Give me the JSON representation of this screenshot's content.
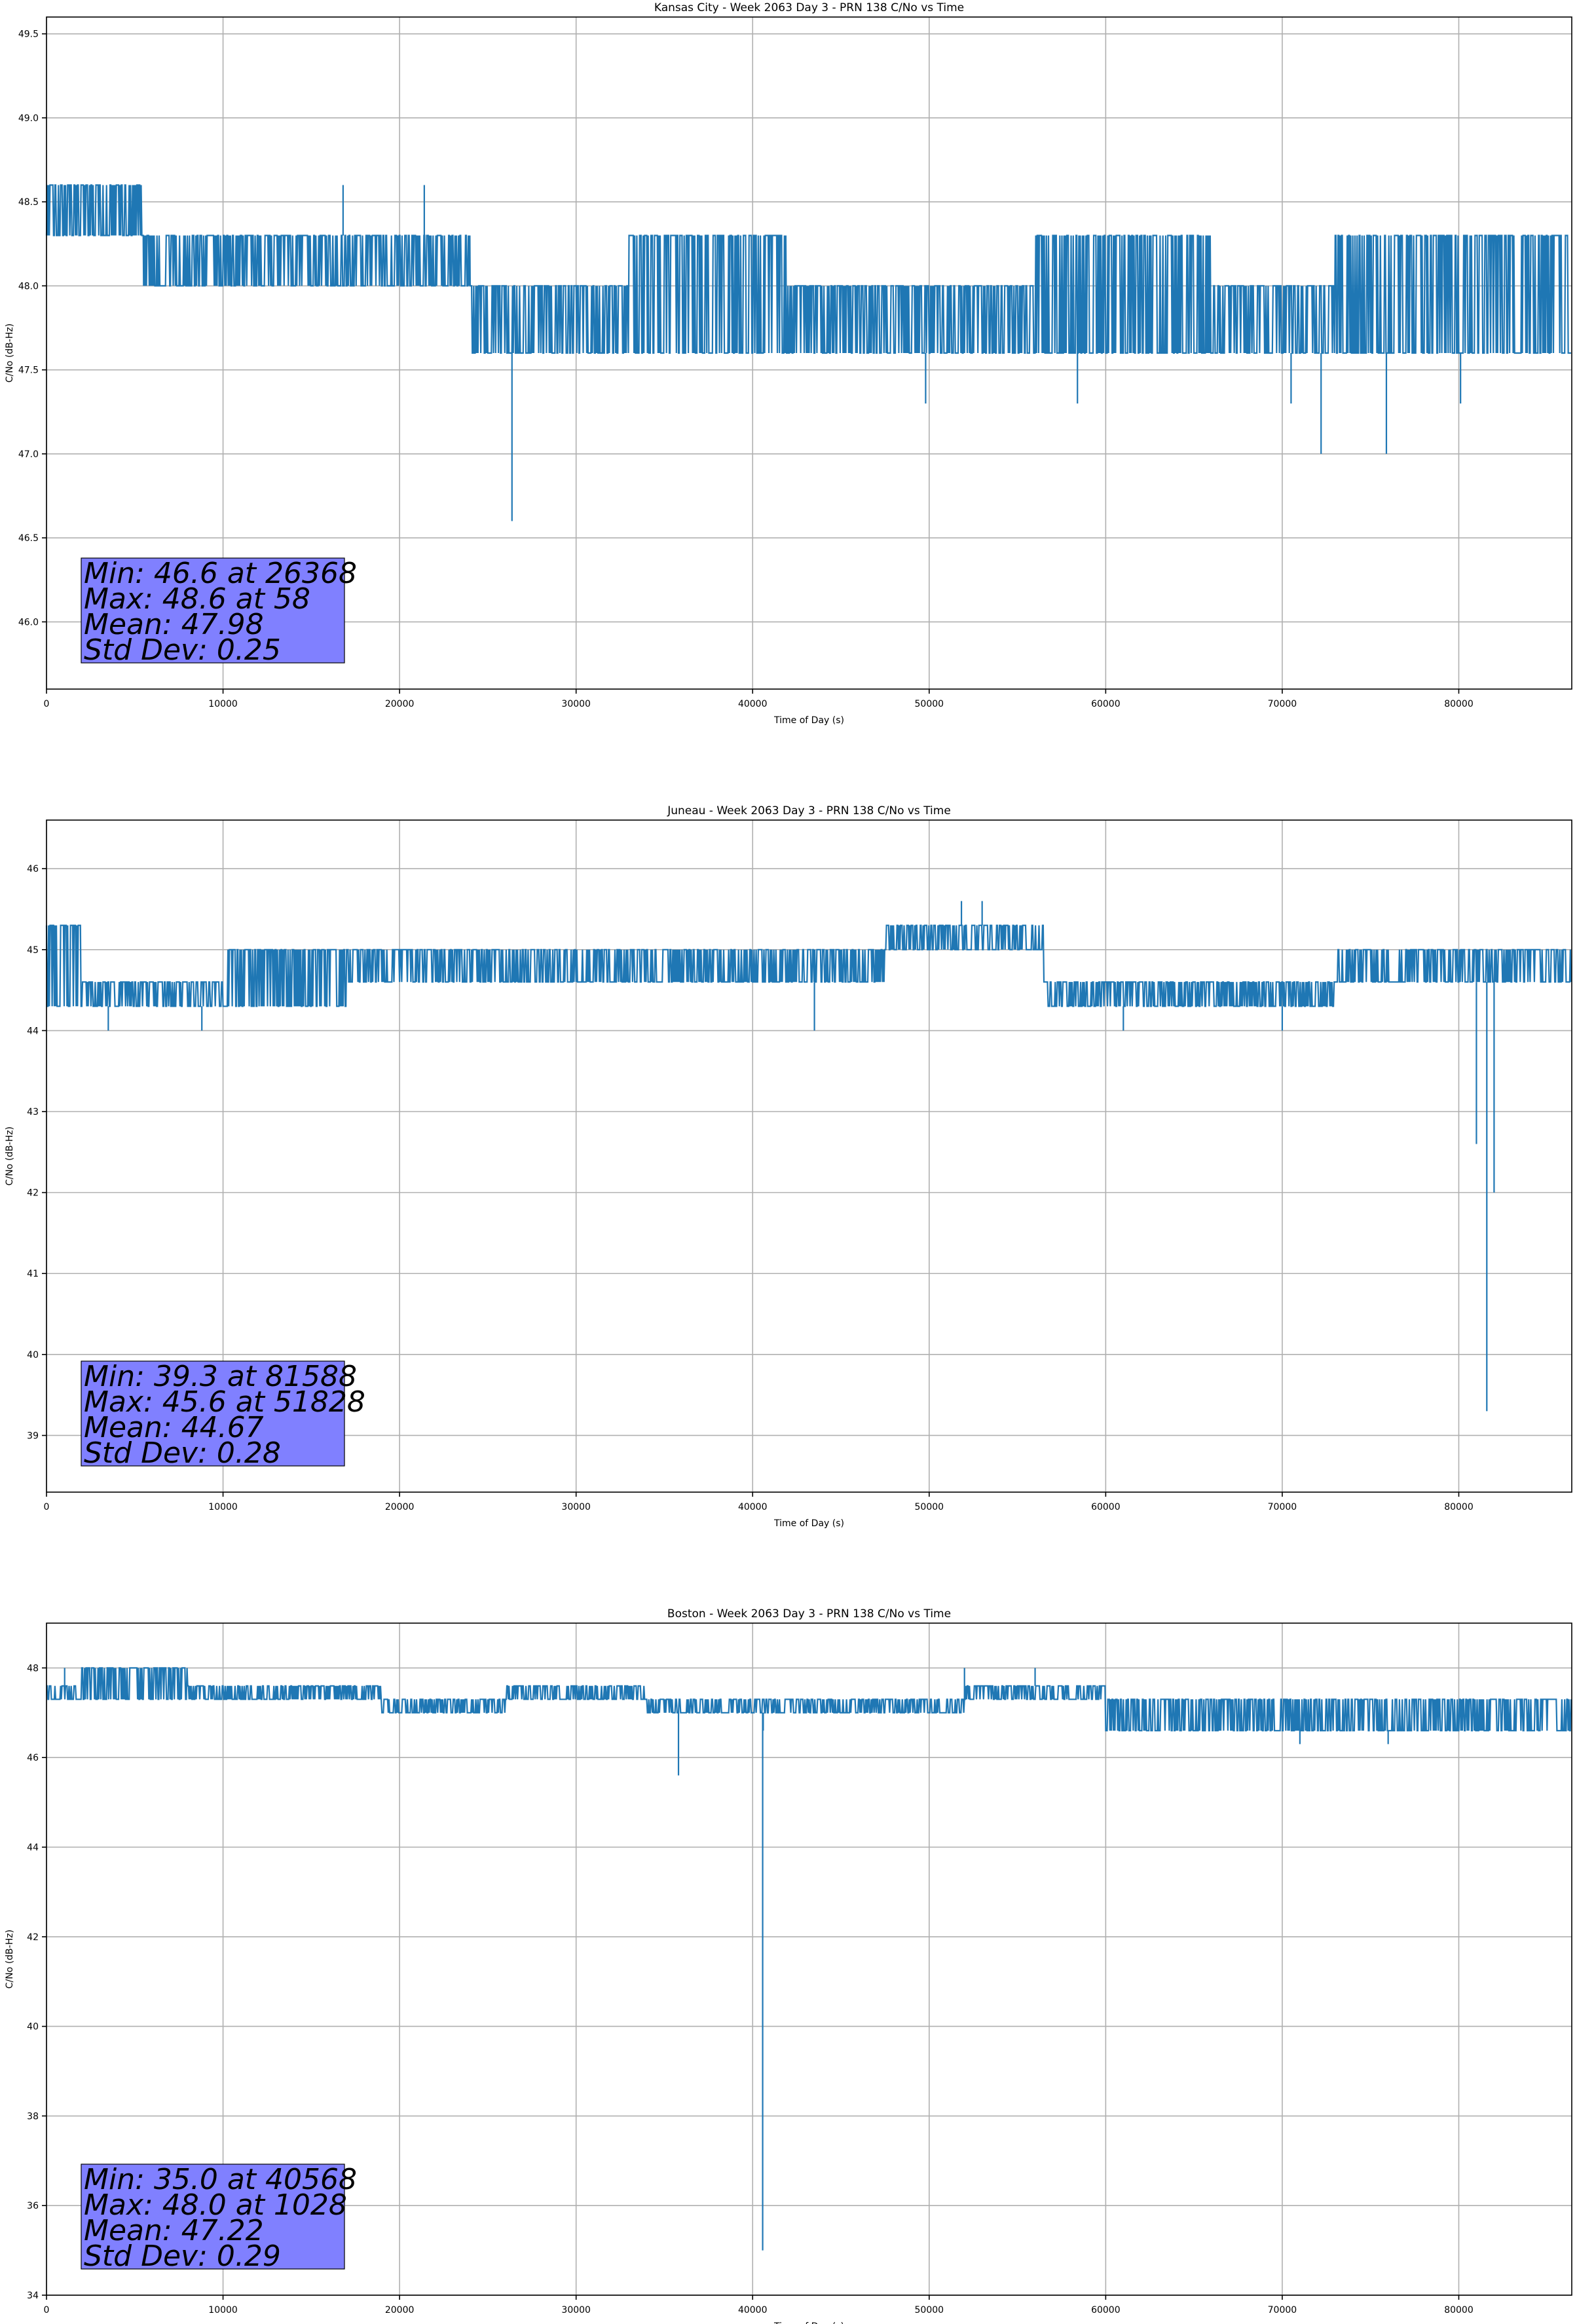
{
  "chart_data": [
    {
      "type": "line",
      "title": "Kansas City - Week 2063 Day 3 - PRN 138 C/No vs Time",
      "xlabel": "Time of Day (s)",
      "ylabel": "C/No (dB-Hz)",
      "xlim": [
        0,
        86400
      ],
      "ylim": [
        45.6,
        49.6
      ],
      "xticks": [
        0,
        10000,
        20000,
        30000,
        40000,
        50000,
        60000,
        70000,
        80000
      ],
      "yticks": [
        46.0,
        46.5,
        47.0,
        47.5,
        48.0,
        48.5,
        49.0,
        49.5
      ],
      "ytick_decimals": 1,
      "grid": true,
      "line_color": "#1f77b4",
      "stats_box_color": "#8080ff",
      "stats": [
        "Min: 46.6 at 26368",
        "Max: 48.6 at 58",
        "Mean: 47.98",
        "Std Dev: 0.25"
      ],
      "series": [
        {
          "bands": [
            {
              "x": [
                0,
                5500
              ],
              "y": [
                48.3,
                48.6
              ]
            },
            {
              "x": [
                5500,
                21500
              ],
              "y": [
                48.0,
                48.3
              ]
            },
            {
              "x": [
                21500,
                24000
              ],
              "y": [
                48.0,
                48.3
              ]
            },
            {
              "x": [
                24000,
                33000
              ],
              "y": [
                47.6,
                48.0
              ]
            },
            {
              "x": [
                33000,
                42000
              ],
              "y": [
                47.6,
                48.3
              ]
            },
            {
              "x": [
                42000,
                56000
              ],
              "y": [
                47.6,
                48.0
              ]
            },
            {
              "x": [
                56000,
                66000
              ],
              "y": [
                47.6,
                48.3
              ]
            },
            {
              "x": [
                66000,
                73000
              ],
              "y": [
                47.6,
                48.0
              ]
            },
            {
              "x": [
                73000,
                86400
              ],
              "y": [
                47.6,
                48.3
              ]
            }
          ],
          "extremes": [
            {
              "x": 58,
              "y": 48.6
            },
            {
              "x": 16800,
              "y": 48.6
            },
            {
              "x": 21400,
              "y": 48.6
            },
            {
              "x": 26368,
              "y": 46.6
            },
            {
              "x": 49800,
              "y": 47.3
            },
            {
              "x": 58400,
              "y": 47.3
            },
            {
              "x": 70500,
              "y": 47.3
            },
            {
              "x": 72200,
              "y": 47.0
            },
            {
              "x": 75900,
              "y": 47.0
            },
            {
              "x": 80100,
              "y": 47.3
            }
          ]
        }
      ]
    },
    {
      "type": "line",
      "title": "Juneau - Week 2063 Day 3 - PRN 138 C/No vs Time",
      "xlabel": "Time of Day (s)",
      "ylabel": "C/No (dB-Hz)",
      "xlim": [
        0,
        86400
      ],
      "ylim": [
        38.3,
        46.6
      ],
      "xticks": [
        0,
        10000,
        20000,
        30000,
        40000,
        50000,
        60000,
        70000,
        80000
      ],
      "yticks": [
        39,
        40,
        41,
        42,
        43,
        44,
        45,
        46
      ],
      "ytick_decimals": 0,
      "grid": true,
      "line_color": "#1f77b4",
      "stats_box_color": "#8080ff",
      "stats": [
        "Min: 39.3 at 81588",
        "Max: 45.6 at 51828",
        "Mean: 44.67",
        "Std Dev: 0.28"
      ],
      "series": [
        {
          "bands": [
            {
              "x": [
                0,
                2000
              ],
              "y": [
                44.3,
                45.3
              ]
            },
            {
              "x": [
                2000,
                10000
              ],
              "y": [
                44.3,
                44.6
              ]
            },
            {
              "x": [
                10000,
                17000
              ],
              "y": [
                44.3,
                45.0
              ]
            },
            {
              "x": [
                17000,
                33000
              ],
              "y": [
                44.6,
                45.0
              ]
            },
            {
              "x": [
                33000,
                47500
              ],
              "y": [
                44.6,
                45.0
              ]
            },
            {
              "x": [
                47500,
                56500
              ],
              "y": [
                45.0,
                45.3
              ]
            },
            {
              "x": [
                56500,
                73000
              ],
              "y": [
                44.3,
                44.6
              ]
            },
            {
              "x": [
                73000,
                86400
              ],
              "y": [
                44.6,
                45.0
              ]
            }
          ],
          "extremes": [
            {
              "x": 3500,
              "y": 44.0
            },
            {
              "x": 8800,
              "y": 44.0
            },
            {
              "x": 43500,
              "y": 44.0
            },
            {
              "x": 51828,
              "y": 45.6
            },
            {
              "x": 53000,
              "y": 45.6
            },
            {
              "x": 61000,
              "y": 44.0
            },
            {
              "x": 70000,
              "y": 44.0
            },
            {
              "x": 81000,
              "y": 42.6
            },
            {
              "x": 81588,
              "y": 39.3
            },
            {
              "x": 82000,
              "y": 42.0
            }
          ]
        }
      ]
    },
    {
      "type": "line",
      "title": "Boston - Week 2063 Day 3 - PRN 138 C/No vs Time",
      "xlabel": "Time of Day (s)",
      "ylabel": "C/No (dB-Hz)",
      "xlim": [
        0,
        86400
      ],
      "ylim": [
        34.0,
        49.0
      ],
      "xticks": [
        0,
        10000,
        20000,
        30000,
        40000,
        50000,
        60000,
        70000,
        80000
      ],
      "yticks": [
        34,
        36,
        38,
        40,
        42,
        44,
        46,
        48
      ],
      "ytick_decimals": 0,
      "grid": true,
      "line_color": "#1f77b4",
      "stats_box_color": "#8080ff",
      "stats": [
        "Min: 35.0 at 40568",
        "Max: 48.0 at 1028",
        "Mean: 47.22",
        "Std Dev: 0.29"
      ],
      "series": [
        {
          "bands": [
            {
              "x": [
                0,
                2000
              ],
              "y": [
                47.3,
                47.6
              ]
            },
            {
              "x": [
                2000,
                8000
              ],
              "y": [
                47.3,
                48.0
              ]
            },
            {
              "x": [
                8000,
                19000
              ],
              "y": [
                47.3,
                47.6
              ]
            },
            {
              "x": [
                19000,
                26000
              ],
              "y": [
                47.0,
                47.3
              ]
            },
            {
              "x": [
                26000,
                34000
              ],
              "y": [
                47.3,
                47.6
              ]
            },
            {
              "x": [
                34000,
                43000
              ],
              "y": [
                47.0,
                47.3
              ]
            },
            {
              "x": [
                43000,
                52000
              ],
              "y": [
                47.0,
                47.3
              ]
            },
            {
              "x": [
                52000,
                60000
              ],
              "y": [
                47.3,
                47.6
              ]
            },
            {
              "x": [
                60000,
                71000
              ],
              "y": [
                46.6,
                47.3
              ]
            },
            {
              "x": [
                71000,
                86400
              ],
              "y": [
                46.6,
                47.3
              ]
            }
          ],
          "extremes": [
            {
              "x": 1028,
              "y": 48.0
            },
            {
              "x": 4000,
              "y": 48.0
            },
            {
              "x": 35800,
              "y": 45.6
            },
            {
              "x": 40568,
              "y": 35.0
            },
            {
              "x": 40600,
              "y": 46.6
            },
            {
              "x": 52000,
              "y": 48.0
            },
            {
              "x": 56000,
              "y": 48.0
            },
            {
              "x": 71000,
              "y": 46.3
            },
            {
              "x": 76000,
              "y": 46.3
            }
          ]
        }
      ]
    }
  ]
}
